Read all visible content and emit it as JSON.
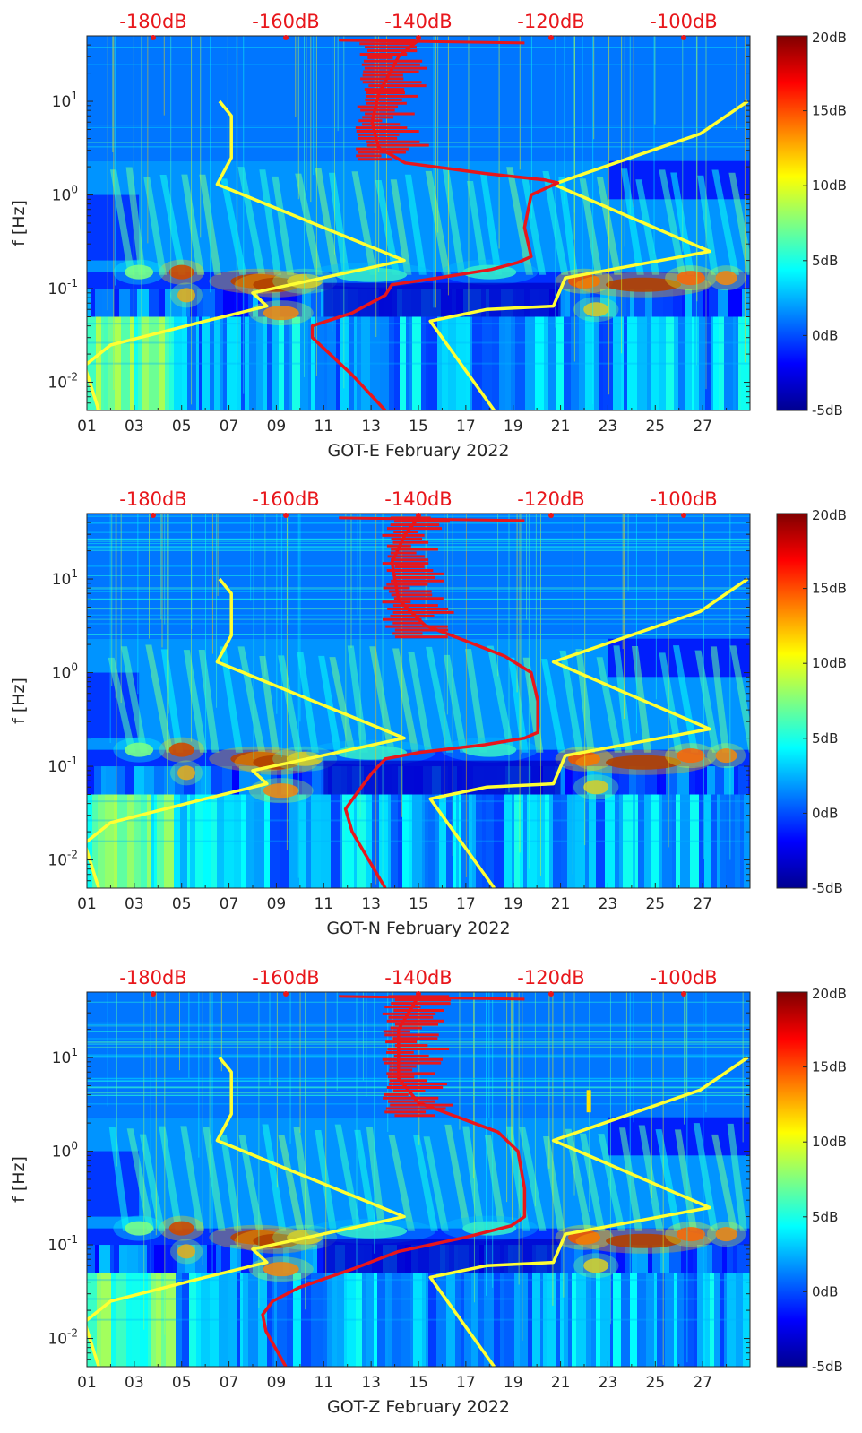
{
  "colormap": [
    "#00008f",
    "#0000ff",
    "#0080ff",
    "#00ffff",
    "#80ff80",
    "#ffff00",
    "#ff8000",
    "#ff0000",
    "#800000"
  ],
  "accent_red": "#e8161b",
  "accent_yellow": "#ffff33",
  "chart_data": [
    {
      "type": "heatmap",
      "xlabel": "GOT-E February 2022",
      "ylabel": "f [Hz]",
      "xlim_days": [
        1,
        29
      ],
      "ylim_hz": [
        0.005,
        50
      ],
      "yscale": "log",
      "x_tick_labels": [
        "01",
        "03",
        "05",
        "07",
        "09",
        "11",
        "13",
        "15",
        "17",
        "19",
        "21",
        "23",
        "25",
        "27"
      ],
      "y_tick_labels": [
        "10^-2",
        "10^-1",
        "10^0",
        "10^1"
      ],
      "top_axis_labels": [
        "-180dB",
        "-160dB",
        "-140dB",
        "-120dB",
        "-100dB"
      ],
      "colorbar_labels": [
        "20dB",
        "15dB",
        "10dB",
        "5dB",
        "0dB",
        "-5dB"
      ],
      "colorbar_range_db": [
        -5,
        20
      ],
      "grid": false,
      "series": [
        {
          "color": "yellow",
          "axis": "left",
          "x": [
            18.2,
            15.5,
            17.9,
            20.7,
            21.2,
            27.3,
            20.7,
            26.9,
            28.9
          ],
          "y": [
            0.005,
            0.045,
            0.06,
            0.065,
            0.13,
            0.25,
            1.3,
            4.5,
            10
          ]
        },
        {
          "color": "yellow",
          "axis": "left",
          "x": [
            1.5,
            0.9,
            2.0,
            6.0,
            8.6,
            8.0,
            14.4,
            6.5,
            7.1,
            7.1,
            6.6
          ],
          "y": [
            0.005,
            0.015,
            0.025,
            0.045,
            0.065,
            0.09,
            0.2,
            1.3,
            2.5,
            7,
            10
          ]
        },
        {
          "color": "red",
          "axis": "top_db",
          "x": [
            -145,
            -150,
            -156,
            -156,
            -150,
            -145,
            -144,
            -137,
            -129,
            -125,
            -123,
            -124,
            -123,
            -120,
            -119,
            -121,
            -130,
            -142,
            -146,
            -147,
            -146,
            -143,
            -140
          ],
          "y": [
            0.005,
            0.012,
            0.03,
            0.04,
            0.055,
            0.085,
            0.11,
            0.13,
            0.16,
            0.19,
            0.22,
            0.45,
            1.0,
            1.25,
            1.35,
            1.45,
            1.7,
            2.2,
            3.2,
            6,
            12,
            30,
            45
          ]
        }
      ]
    },
    {
      "type": "heatmap",
      "xlabel": "GOT-N February 2022",
      "ylabel": "f [Hz]",
      "xlim_days": [
        1,
        29
      ],
      "ylim_hz": [
        0.005,
        50
      ],
      "yscale": "log",
      "x_tick_labels": [
        "01",
        "03",
        "05",
        "07",
        "09",
        "11",
        "13",
        "15",
        "17",
        "19",
        "21",
        "23",
        "25",
        "27"
      ],
      "y_tick_labels": [
        "10^-2",
        "10^-1",
        "10^0",
        "10^1"
      ],
      "top_axis_labels": [
        "-180dB",
        "-160dB",
        "-140dB",
        "-120dB",
        "-100dB"
      ],
      "colorbar_labels": [
        "20dB",
        "15dB",
        "10dB",
        "5dB",
        "0dB",
        "-5dB"
      ],
      "colorbar_range_db": [
        -5,
        20
      ],
      "grid": false,
      "series": [
        {
          "color": "yellow",
          "axis": "left",
          "x": [
            18.2,
            15.5,
            17.9,
            20.7,
            21.2,
            27.3,
            20.7,
            26.9,
            28.9
          ],
          "y": [
            0.005,
            0.045,
            0.06,
            0.065,
            0.13,
            0.25,
            1.3,
            4.5,
            10
          ]
        },
        {
          "color": "yellow",
          "axis": "left",
          "x": [
            1.5,
            0.9,
            2.0,
            6.0,
            8.6,
            8.0,
            14.4,
            6.5,
            7.1,
            7.1,
            6.6
          ],
          "y": [
            0.005,
            0.015,
            0.025,
            0.045,
            0.065,
            0.09,
            0.2,
            1.3,
            2.5,
            7,
            10
          ]
        },
        {
          "color": "red",
          "axis": "top_db",
          "x": [
            -145,
            -150,
            -151,
            -149,
            -147,
            -145,
            -140,
            -130,
            -124,
            -122,
            -122,
            -123,
            -127,
            -133,
            -139,
            -143,
            -144,
            -142,
            -140
          ],
          "y": [
            0.005,
            0.02,
            0.035,
            0.055,
            0.085,
            0.12,
            0.14,
            0.17,
            0.2,
            0.23,
            0.5,
            1.0,
            1.5,
            2.2,
            3.2,
            6,
            15,
            30,
            45
          ]
        }
      ]
    },
    {
      "type": "heatmap",
      "xlabel": "GOT-Z February 2022",
      "ylabel": "f [Hz]",
      "xlim_days": [
        1,
        29
      ],
      "ylim_hz": [
        0.005,
        50
      ],
      "yscale": "log",
      "x_tick_labels": [
        "01",
        "03",
        "05",
        "07",
        "09",
        "11",
        "13",
        "15",
        "17",
        "19",
        "21",
        "23",
        "25",
        "27"
      ],
      "y_tick_labels": [
        "10^-2",
        "10^-1",
        "10^0",
        "10^1"
      ],
      "top_axis_labels": [
        "-180dB",
        "-160dB",
        "-140dB",
        "-120dB",
        "-100dB"
      ],
      "colorbar_labels": [
        "20dB",
        "15dB",
        "10dB",
        "5dB",
        "0dB",
        "-5dB"
      ],
      "colorbar_range_db": [
        -5,
        20
      ],
      "grid": false,
      "series": [
        {
          "color": "yellow",
          "axis": "left",
          "x": [
            18.2,
            15.5,
            17.9,
            20.7,
            21.2,
            27.3,
            20.7,
            26.9,
            28.9
          ],
          "y": [
            0.005,
            0.045,
            0.06,
            0.065,
            0.13,
            0.25,
            1.3,
            4.5,
            10
          ]
        },
        {
          "color": "yellow",
          "axis": "left",
          "x": [
            1.5,
            0.9,
            2.0,
            6.0,
            8.6,
            8.0,
            14.4,
            6.5,
            7.1,
            7.1,
            6.6
          ],
          "y": [
            0.005,
            0.015,
            0.025,
            0.045,
            0.065,
            0.09,
            0.2,
            1.3,
            2.5,
            7,
            10
          ]
        },
        {
          "color": "red",
          "axis": "top_db",
          "x": [
            -160,
            -163,
            -163.5,
            -162,
            -158,
            -150,
            -143,
            -133,
            -126,
            -124,
            -124,
            -125,
            -128,
            -134,
            -140,
            -143,
            -143,
            -140
          ],
          "y": [
            0.005,
            0.012,
            0.018,
            0.025,
            0.035,
            0.055,
            0.085,
            0.12,
            0.16,
            0.2,
            0.4,
            1.0,
            1.6,
            2.3,
            3.3,
            6,
            20,
            45
          ]
        }
      ]
    }
  ]
}
